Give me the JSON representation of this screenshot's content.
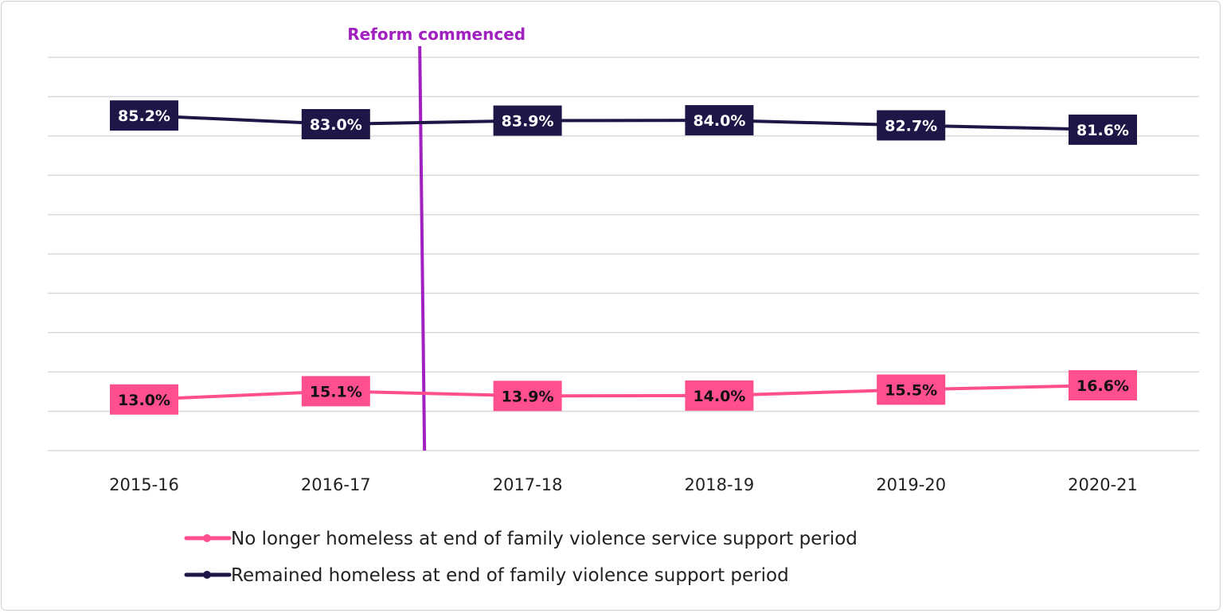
{
  "chart_data": {
    "type": "line",
    "title": "",
    "xlabel": "",
    "ylabel": "",
    "categories": [
      "2015-16",
      "2016-17",
      "2017-18",
      "2018-19",
      "2019-20",
      "2020-21"
    ],
    "ylim": [
      0,
      100
    ],
    "y_gridlines_every": 10,
    "grid": true,
    "y_tick_labels_shown": false,
    "legend_placement": "bottom",
    "series": [
      {
        "name": "No longer homeless at end of family violence service support period",
        "values": [
          13.0,
          15.1,
          13.9,
          14.0,
          15.5,
          16.6
        ],
        "labels": [
          "13.0%",
          "15.1%",
          "13.9%",
          "14.0%",
          "15.5%",
          "16.6%"
        ],
        "color": "#FF4F8E",
        "label_text_color": "#111111"
      },
      {
        "name": "Remained homeless at end of family violence support period",
        "values": [
          85.2,
          83.0,
          83.9,
          84.0,
          82.7,
          81.6
        ],
        "labels": [
          "85.2%",
          "83.0%",
          "83.9%",
          "84.0%",
          "82.7%",
          "81.6%"
        ],
        "color": "#201547",
        "label_text_color": "#ffffff"
      }
    ],
    "annotation": {
      "text": "Reform commenced",
      "between": [
        "2016-17",
        "2017-18"
      ],
      "color": "#A020C0"
    }
  }
}
